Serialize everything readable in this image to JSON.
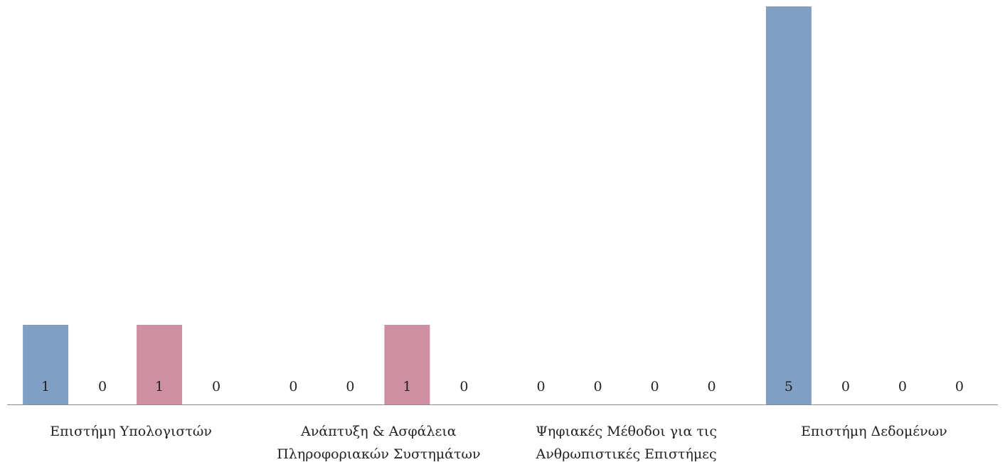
{
  "chart_data": {
    "type": "bar",
    "categories": [
      [
        "Επιστήμη Υπολογιστών"
      ],
      [
        "Ανάπτυξη  & Ασφάλεια",
        "Πληροφοριακών Συστημάτων"
      ],
      [
        "Ψηφιακές Μέθοδοι για τις",
        "Ανθρωπιστικές Επιστήμες"
      ],
      [
        "Επιστήμη Δεδομένων"
      ]
    ],
    "series": [
      {
        "values": [
          1,
          0,
          0,
          5
        ],
        "color": "#7f9fc4"
      },
      {
        "values": [
          0,
          0,
          0,
          0
        ],
        "color": "#7f9fc4"
      },
      {
        "values": [
          1,
          1,
          0,
          0
        ],
        "color": "#cf8fa3"
      },
      {
        "values": [
          0,
          0,
          0,
          0
        ],
        "color": "#cf8fa3"
      }
    ],
    "ylim": [
      0,
      5
    ],
    "grid": false,
    "legend": "none",
    "axis_color": "#8c8c8c"
  }
}
